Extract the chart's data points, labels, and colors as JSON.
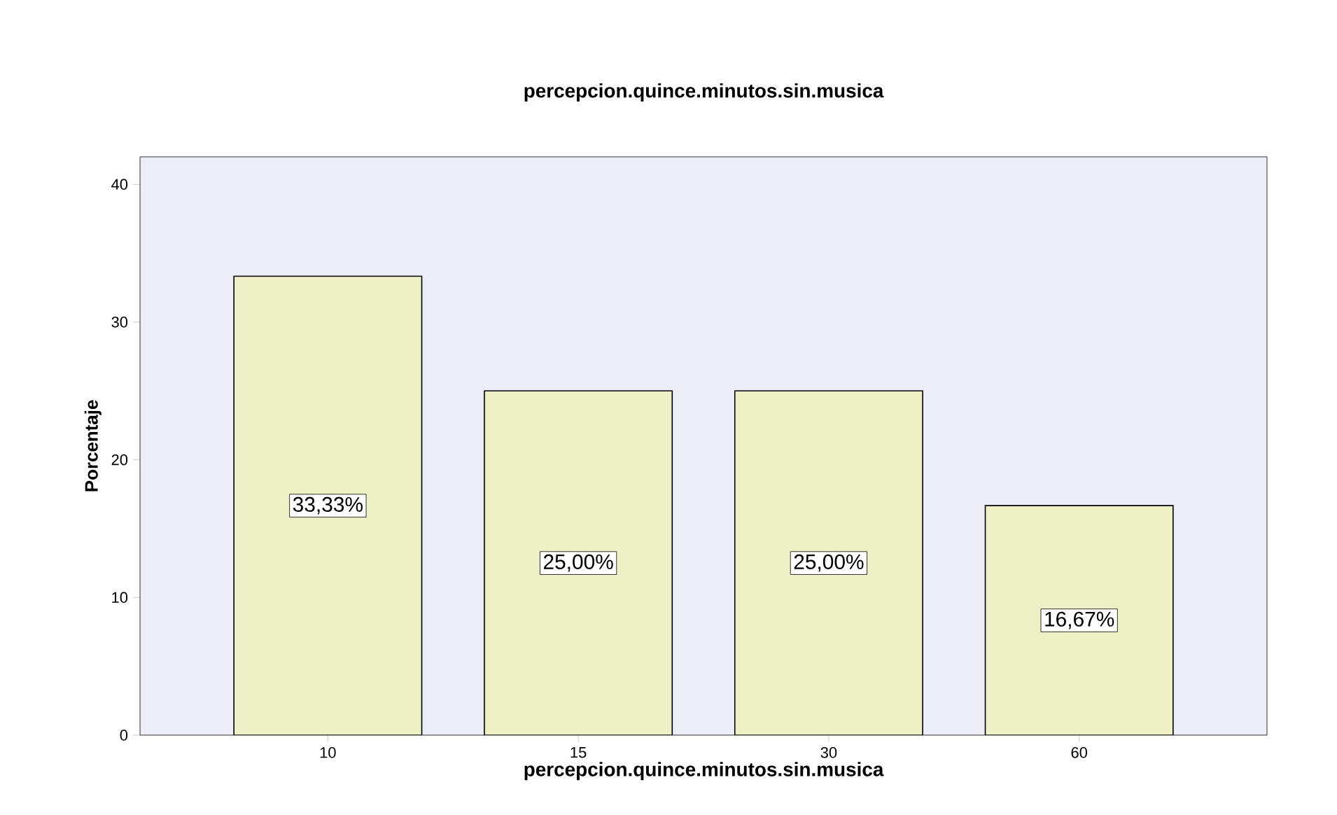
{
  "chart_data": {
    "type": "bar",
    "title": "percepcion.quince.minutos.sin.musica",
    "xlabel": "percepcion.quince.minutos.sin.musica",
    "ylabel": "Porcentaje",
    "categories": [
      "10",
      "15",
      "30",
      "60"
    ],
    "values": [
      33.33,
      25.0,
      25.0,
      16.67
    ],
    "value_labels": [
      "33,33%",
      "25,00%",
      "25,00%",
      "16,67%"
    ],
    "color": "#eef0c6",
    "ylim": [
      0,
      42
    ],
    "yticks": [
      0,
      10,
      20,
      30,
      40
    ]
  }
}
